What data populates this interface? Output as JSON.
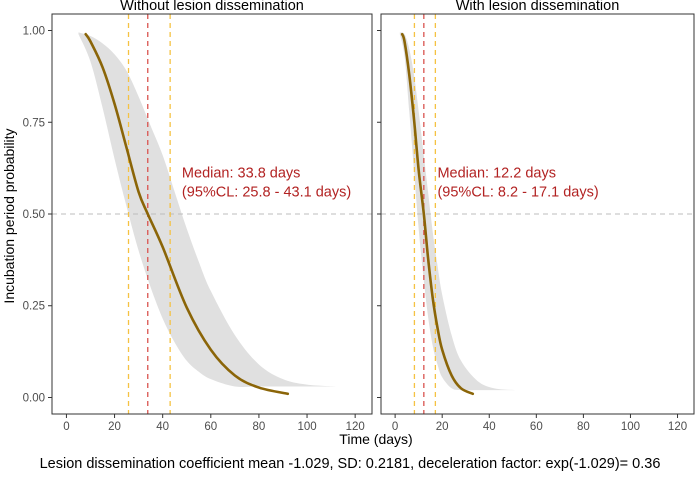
{
  "figure_caption": "Lesion dissemination coefficient mean -1.029, SD: 0.2181, deceleration factor: exp(-1.029)= 0.36",
  "chart_data": [
    {
      "type": "line",
      "title": "Without lesion dissemination",
      "xlabel": "Time (days)",
      "ylabel": "Incubation period probability",
      "xlim": [
        -6,
        127
      ],
      "ylim": [
        -0.045,
        1.045
      ],
      "xticks": [
        0,
        20,
        40,
        60,
        80,
        100,
        120
      ],
      "yticks": [
        0.0,
        0.25,
        0.5,
        0.75,
        1.0
      ],
      "ytick_labels": [
        "0.00",
        "0.25",
        "0.50",
        "0.75",
        "1.00"
      ],
      "grid": false,
      "reference_line_y": 0.5,
      "median_days": 33.8,
      "ci_days": [
        25.8,
        43.1
      ],
      "annotation": [
        "Median: 33.8 days",
        "(95%CL: 25.8 - 43.1 days)"
      ],
      "annotation_anchor": [
        48,
        0.6
      ],
      "series": [
        {
          "name": "Median survival curve",
          "color": "#8B6508",
          "x": [
            8,
            10,
            15,
            20,
            25,
            30,
            33.8,
            40,
            50,
            60,
            70,
            80,
            92
          ],
          "y": [
            0.99,
            0.97,
            0.9,
            0.8,
            0.68,
            0.56,
            0.5,
            0.41,
            0.245,
            0.13,
            0.06,
            0.027,
            0.01
          ]
        }
      ],
      "band": {
        "name": "95% CL",
        "color": "#E0E0E0",
        "x": [
          5,
          10,
          15,
          20,
          25,
          30,
          35,
          40,
          45,
          50,
          55,
          60,
          70,
          80,
          90,
          100,
          112
        ],
        "upper": [
          0.995,
          0.985,
          0.965,
          0.935,
          0.89,
          0.82,
          0.74,
          0.66,
          0.56,
          0.46,
          0.37,
          0.29,
          0.17,
          0.09,
          0.05,
          0.035,
          0.03
        ],
        "lower": [
          0.99,
          0.915,
          0.79,
          0.65,
          0.52,
          0.4,
          0.3,
          0.215,
          0.15,
          0.1,
          0.07,
          0.05,
          0.03,
          0.03,
          0.03,
          0.03,
          0.03
        ]
      },
      "vlines": [
        {
          "x": 25.8,
          "color": "#F5C242"
        },
        {
          "x": 33.8,
          "color": "#D9534F"
        },
        {
          "x": 43.1,
          "color": "#F5C242"
        }
      ]
    },
    {
      "type": "line",
      "title": "With lesion dissemination",
      "xlabel": "Time (days)",
      "ylabel": "Incubation period probability",
      "xlim": [
        -6,
        127
      ],
      "ylim": [
        -0.045,
        1.045
      ],
      "xticks": [
        0,
        20,
        40,
        60,
        80,
        100,
        120
      ],
      "yticks": [
        0.0,
        0.25,
        0.5,
        0.75,
        1.0
      ],
      "grid": false,
      "reference_line_y": 0.5,
      "median_days": 12.2,
      "ci_days": [
        8.2,
        17.1
      ],
      "annotation": [
        "Median: 12.2 days",
        "(95%CL: 8.2 - 17.1 days)"
      ],
      "annotation_anchor": [
        18,
        0.6
      ],
      "series": [
        {
          "name": "Median survival curve",
          "color": "#8B6508",
          "x": [
            3,
            4,
            6,
            8,
            10,
            12.2,
            14,
            16,
            18,
            20,
            24,
            28,
            33
          ],
          "y": [
            0.99,
            0.97,
            0.88,
            0.76,
            0.62,
            0.5,
            0.38,
            0.27,
            0.19,
            0.13,
            0.06,
            0.025,
            0.01
          ]
        }
      ],
      "band": {
        "name": "95% CL",
        "color": "#E0E0E0",
        "x": [
          2,
          4,
          6,
          8,
          10,
          12,
          14,
          16,
          18,
          20,
          24,
          28,
          35,
          42,
          51
        ],
        "upper": [
          0.995,
          0.99,
          0.95,
          0.88,
          0.78,
          0.67,
          0.56,
          0.45,
          0.36,
          0.28,
          0.17,
          0.1,
          0.045,
          0.025,
          0.02
        ],
        "lower": [
          0.99,
          0.93,
          0.78,
          0.62,
          0.46,
          0.33,
          0.22,
          0.14,
          0.09,
          0.055,
          0.025,
          0.02,
          0.02,
          0.02,
          0.02
        ]
      },
      "vlines": [
        {
          "x": 8.2,
          "color": "#F5C242"
        },
        {
          "x": 12.2,
          "color": "#D9534F"
        },
        {
          "x": 17.1,
          "color": "#F5C242"
        }
      ]
    }
  ]
}
